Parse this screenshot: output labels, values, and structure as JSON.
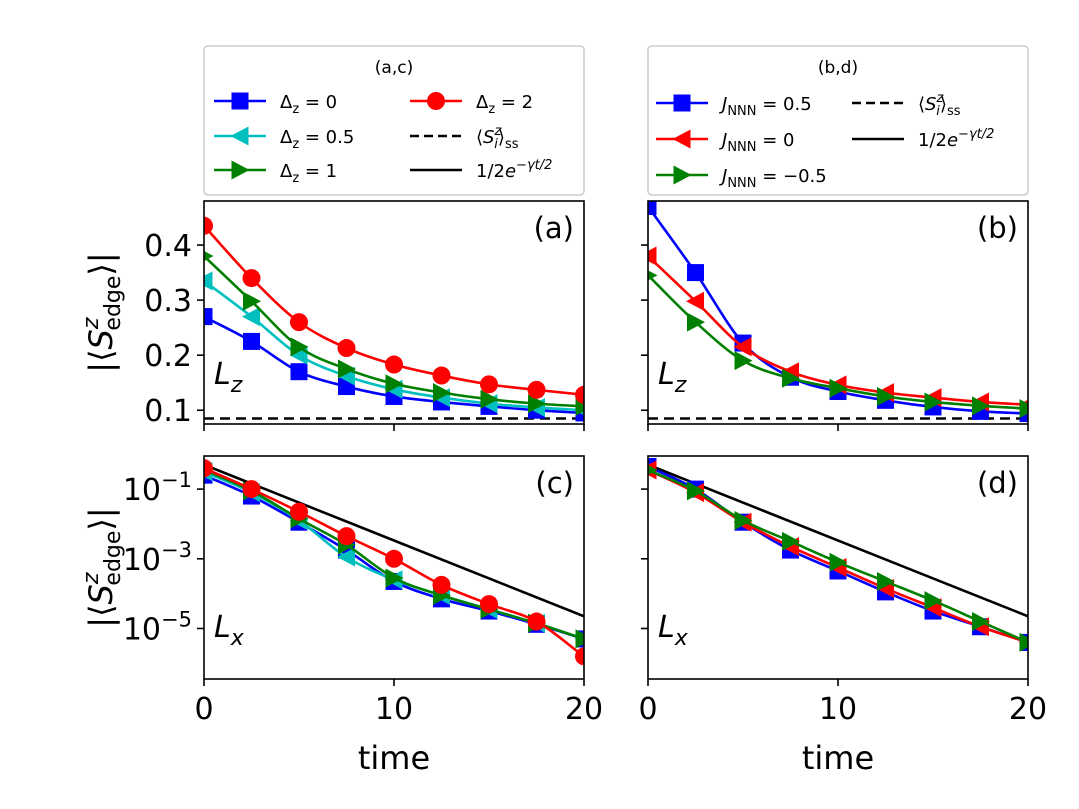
{
  "legends": {
    "ac": {
      "title": "(a,c)",
      "entries": [
        {
          "label": "Δz = 0",
          "color": "#0000ff",
          "marker": "square",
          "style": "solid"
        },
        {
          "label": "Δz = 0.5",
          "color": "#00bfbf",
          "marker": "triangle-left",
          "style": "solid"
        },
        {
          "label": "Δz = 1",
          "color": "#008000",
          "marker": "triangle-right",
          "style": "solid"
        },
        {
          "label": "Δz = 2",
          "color": "#ff0000",
          "marker": "circle",
          "style": "solid"
        },
        {
          "label": "⟨Siz⟩ss",
          "color": "#000000",
          "marker": "none",
          "style": "dashed"
        },
        {
          "label": "1/2e−γt/2",
          "color": "#000000",
          "marker": "none",
          "style": "solid"
        }
      ]
    },
    "bd": {
      "title": "(b,d)",
      "entries": [
        {
          "label": "JNNN = 0.5",
          "color": "#0000ff",
          "marker": "square",
          "style": "solid"
        },
        {
          "label": "JNNN = 0",
          "color": "#ff0000",
          "marker": "triangle-left",
          "style": "solid"
        },
        {
          "label": "JNNN = −0.5",
          "color": "#008000",
          "marker": "triangle-right",
          "style": "solid"
        },
        {
          "label": "⟨Siz⟩ss",
          "color": "#000000",
          "marker": "none",
          "style": "dashed"
        },
        {
          "label": "1/2e−γt/2",
          "color": "#000000",
          "marker": "none",
          "style": "solid"
        }
      ]
    }
  },
  "chart_data": [
    {
      "panel": "(a)",
      "type": "line",
      "scale": "linear",
      "operator": "Lz",
      "xlabel": "",
      "ylabel": "|⟨Sz edge⟩|",
      "xlim": [
        0,
        20
      ],
      "ylim": [
        0.075,
        0.48
      ],
      "xticks": [
        0,
        10,
        20
      ],
      "xtick_labels": [
        "",
        "",
        ""
      ],
      "yticks": [
        0.1,
        0.2,
        0.3,
        0.4
      ],
      "ytick_labels": [
        "0.1",
        "0.2",
        "0.3",
        "0.4"
      ],
      "curves": [
        {
          "name": "Δz = 0",
          "color": "#0000ff",
          "marker": "square",
          "x": [
            0,
            2.5,
            5,
            7.5,
            10,
            12.5,
            15,
            17.5,
            20
          ],
          "y": [
            0.27,
            0.225,
            0.17,
            0.143,
            0.125,
            0.115,
            0.107,
            0.1,
            0.095
          ]
        },
        {
          "name": "Δz = 0.5",
          "color": "#00bfbf",
          "marker": "triangle-left",
          "x": [
            0,
            2.5,
            5,
            7.5,
            10,
            12.5,
            15,
            17.5,
            20
          ],
          "y": [
            0.335,
            0.27,
            0.2,
            0.162,
            0.138,
            0.123,
            0.112,
            0.105,
            0.1
          ]
        },
        {
          "name": "Δz = 1",
          "color": "#008000",
          "marker": "triangle-right",
          "x": [
            0,
            2.5,
            5,
            7.5,
            10,
            12.5,
            15,
            17.5,
            20
          ],
          "y": [
            0.38,
            0.298,
            0.215,
            0.175,
            0.148,
            0.132,
            0.12,
            0.112,
            0.107
          ]
        },
        {
          "name": "Δz = 2",
          "color": "#ff0000",
          "marker": "circle",
          "x": [
            0,
            2.5,
            5,
            7.5,
            10,
            12.5,
            15,
            17.5,
            20
          ],
          "y": [
            0.435,
            0.34,
            0.26,
            0.213,
            0.183,
            0.163,
            0.147,
            0.137,
            0.128
          ]
        }
      ],
      "hlines": [
        {
          "y": 0.085,
          "style": "dashed",
          "color": "#000000"
        }
      ]
    },
    {
      "panel": "(b)",
      "type": "line",
      "scale": "linear",
      "operator": "Lz",
      "xlabel": "",
      "ylabel": "",
      "xlim": [
        0,
        20
      ],
      "ylim": [
        0.075,
        0.48
      ],
      "xticks": [
        0,
        10,
        20
      ],
      "xtick_labels": [
        "",
        "",
        ""
      ],
      "yticks": [
        0.1,
        0.2,
        0.3,
        0.4
      ],
      "ytick_labels": [
        "",
        "",
        "",
        ""
      ],
      "curves": [
        {
          "name": "JNNN = 0.5",
          "color": "#0000ff",
          "marker": "square",
          "x": [
            0,
            2.5,
            5,
            7.5,
            10,
            12.5,
            15,
            17.5,
            20
          ],
          "y": [
            0.47,
            0.35,
            0.222,
            0.16,
            0.134,
            0.118,
            0.106,
            0.098,
            0.094
          ]
        },
        {
          "name": "JNNN = 0",
          "color": "#ff0000",
          "marker": "triangle-left",
          "x": [
            0,
            2.5,
            5,
            7.5,
            10,
            12.5,
            15,
            17.5,
            20
          ],
          "y": [
            0.38,
            0.298,
            0.215,
            0.17,
            0.146,
            0.132,
            0.123,
            0.115,
            0.11
          ]
        },
        {
          "name": "JNNN = −0.5",
          "color": "#008000",
          "marker": "triangle-right",
          "x": [
            0,
            2.5,
            5,
            7.5,
            10,
            12.5,
            15,
            17.5,
            20
          ],
          "y": [
            0.345,
            0.26,
            0.19,
            0.158,
            0.14,
            0.125,
            0.115,
            0.108,
            0.103
          ]
        }
      ],
      "hlines": [
        {
          "y": 0.085,
          "style": "dashed",
          "color": "#000000"
        }
      ]
    },
    {
      "panel": "(c)",
      "type": "line",
      "scale": "log",
      "operator": "Lx",
      "xlabel": "time",
      "ylabel": "|⟨Sz edge⟩|",
      "xlim": [
        0,
        20
      ],
      "ylim_log10": [
        -6.45,
        -0.05
      ],
      "xticks": [
        0,
        10,
        20
      ],
      "xtick_labels": [
        "0",
        "10",
        "20"
      ],
      "yticks_log10": [
        -5,
        -3,
        -1
      ],
      "ytick_labels": [
        "10−5",
        "10−3",
        "10−1"
      ],
      "curves": [
        {
          "name": "Δz = 0",
          "color": "#0000ff",
          "marker": "square",
          "x": [
            0,
            2.5,
            5,
            7.5,
            10,
            12.5,
            15,
            17.5,
            20
          ],
          "y_log10": [
            -0.6,
            -1.2,
            -1.95,
            -2.75,
            -3.65,
            -4.15,
            -4.5,
            -4.88,
            -5.3
          ]
        },
        {
          "name": "Δz = 0.5",
          "color": "#00bfbf",
          "marker": "triangle-left",
          "x": [
            0,
            2.5,
            5,
            7.5,
            10,
            12.5,
            15,
            17.5,
            20
          ],
          "y_log10": [
            -0.5,
            -1.1,
            -1.9,
            -2.95,
            -3.6,
            -4.05,
            -4.45,
            -4.85,
            -5.3
          ]
        },
        {
          "name": "Δz = 1",
          "color": "#008000",
          "marker": "triangle-right",
          "x": [
            0,
            2.5,
            5,
            7.5,
            10,
            12.5,
            15,
            17.5,
            20
          ],
          "y_log10": [
            -0.45,
            -1.05,
            -1.85,
            -2.6,
            -3.55,
            -4.05,
            -4.45,
            -4.85,
            -5.3
          ]
        },
        {
          "name": "Δz = 2",
          "color": "#ff0000",
          "marker": "circle",
          "x": [
            0,
            2.5,
            5,
            7.5,
            10,
            12.5,
            15,
            17.5,
            20
          ],
          "y_log10": [
            -0.4,
            -1.0,
            -1.65,
            -2.35,
            -3.0,
            -3.75,
            -4.3,
            -4.8,
            -5.8
          ]
        }
      ],
      "reference_lines": [
        {
          "label": "1/2e−γt/2",
          "x": [
            0,
            20
          ],
          "y_log10": [
            -0.3,
            -4.65
          ],
          "color": "#000000"
        }
      ]
    },
    {
      "panel": "(d)",
      "type": "line",
      "scale": "log",
      "operator": "Lx",
      "xlabel": "time",
      "ylabel": "",
      "xlim": [
        0,
        20
      ],
      "ylim_log10": [
        -6.45,
        -0.05
      ],
      "xticks": [
        0,
        10,
        20
      ],
      "xtick_labels": [
        "0",
        "10",
        "20"
      ],
      "yticks_log10": [
        -5,
        -3,
        -1
      ],
      "ytick_labels": [
        "",
        "",
        ""
      ],
      "curves": [
        {
          "name": "JNNN = 0.5",
          "color": "#0000ff",
          "marker": "square",
          "x": [
            0,
            2.5,
            5,
            7.5,
            10,
            12.5,
            15,
            17.5,
            20
          ],
          "y_log10": [
            -0.35,
            -1.0,
            -1.95,
            -2.75,
            -3.35,
            -3.95,
            -4.5,
            -4.95,
            -5.4
          ]
        },
        {
          "name": "JNNN = 0",
          "color": "#ff0000",
          "marker": "triangle-left",
          "x": [
            0,
            2.5,
            5,
            7.5,
            10,
            12.5,
            15,
            17.5,
            20
          ],
          "y_log10": [
            -0.45,
            -1.1,
            -1.95,
            -2.65,
            -3.25,
            -3.85,
            -4.4,
            -4.95,
            -5.4
          ]
        },
        {
          "name": "JNNN = −0.5",
          "color": "#008000",
          "marker": "triangle-right",
          "x": [
            0,
            2.5,
            5,
            7.5,
            10,
            12.5,
            15,
            17.5,
            20
          ],
          "y_log10": [
            -0.45,
            -1.05,
            -1.9,
            -2.5,
            -3.1,
            -3.65,
            -4.2,
            -4.8,
            -5.4
          ]
        }
      ],
      "reference_lines": [
        {
          "label": "1/2e−γt/2",
          "x": [
            0,
            20
          ],
          "y_log10": [
            -0.3,
            -4.65
          ],
          "color": "#000000"
        }
      ]
    }
  ]
}
